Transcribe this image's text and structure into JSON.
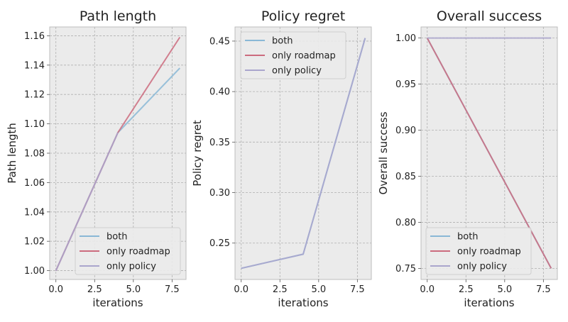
{
  "colors": {
    "both": "#8ab8d6",
    "only roadmap": "#cc6b7e",
    "only policy": "#aaa5cd"
  },
  "chart_data": [
    {
      "type": "line",
      "title": "Path length",
      "xlabel": "iterations",
      "ylabel": "Path length",
      "xlim": [
        -0.4,
        8.4
      ],
      "ylim": [
        0.994,
        1.166
      ],
      "x_ticks": [
        0.0,
        2.5,
        5.0,
        7.5
      ],
      "x_tick_labels": [
        "0.0",
        "2.5",
        "5.0",
        "7.5"
      ],
      "y_ticks": [
        1.0,
        1.02,
        1.04,
        1.06,
        1.08,
        1.1,
        1.12,
        1.14,
        1.16
      ],
      "y_tick_labels": [
        "1.00",
        "1.02",
        "1.04",
        "1.06",
        "1.08",
        "1.10",
        "1.12",
        "1.14",
        "1.16"
      ],
      "grid": true,
      "legend_position": "lower-right",
      "series": [
        {
          "name": "both",
          "x": [
            0,
            4,
            8
          ],
          "y": [
            1.0,
            1.094,
            1.138
          ]
        },
        {
          "name": "only roadmap",
          "x": [
            0,
            4,
            8
          ],
          "y": [
            1.0,
            1.094,
            1.159
          ]
        },
        {
          "name": "only policy",
          "x": [
            0,
            4
          ],
          "y": [
            1.0,
            1.094
          ]
        }
      ]
    },
    {
      "type": "line",
      "title": "Policy regret",
      "xlabel": "iterations",
      "ylabel": "Policy regret",
      "xlim": [
        -0.4,
        8.4
      ],
      "ylim": [
        0.214,
        0.464
      ],
      "x_ticks": [
        0.0,
        2.5,
        5.0,
        7.5
      ],
      "x_tick_labels": [
        "0.0",
        "2.5",
        "5.0",
        "7.5"
      ],
      "y_ticks": [
        0.25,
        0.3,
        0.35,
        0.4,
        0.45
      ],
      "y_tick_labels": [
        "0.25",
        "0.30",
        "0.35",
        "0.40",
        "0.45"
      ],
      "grid": true,
      "legend_position": "top-left",
      "series": [
        {
          "name": "both",
          "x": [
            0,
            4,
            8
          ],
          "y": [
            0.225,
            0.239,
            0.453
          ]
        },
        {
          "name": "only roadmap",
          "x": [],
          "y": []
        },
        {
          "name": "only policy",
          "x": [
            0,
            4,
            8
          ],
          "y": [
            0.225,
            0.239,
            0.453
          ]
        }
      ]
    },
    {
      "type": "line",
      "title": "Overall success",
      "xlabel": "iterations",
      "ylabel": "Overall success",
      "xlim": [
        -0.4,
        8.4
      ],
      "ylim": [
        0.738,
        1.012
      ],
      "x_ticks": [
        0.0,
        2.5,
        5.0,
        7.5
      ],
      "x_tick_labels": [
        "0.0",
        "2.5",
        "5.0",
        "7.5"
      ],
      "y_ticks": [
        0.75,
        0.8,
        0.85,
        0.9,
        0.95,
        1.0
      ],
      "y_tick_labels": [
        "0.75",
        "0.80",
        "0.85",
        "0.90",
        "0.95",
        "1.00"
      ],
      "grid": true,
      "legend_position": "lower-left",
      "series": [
        {
          "name": "both",
          "x": [
            0,
            8
          ],
          "y": [
            1.0,
            0.75
          ]
        },
        {
          "name": "only roadmap",
          "x": [
            0,
            8
          ],
          "y": [
            1.0,
            0.75
          ]
        },
        {
          "name": "only policy",
          "x": [
            0,
            8
          ],
          "y": [
            1.0,
            1.0
          ]
        }
      ]
    }
  ]
}
